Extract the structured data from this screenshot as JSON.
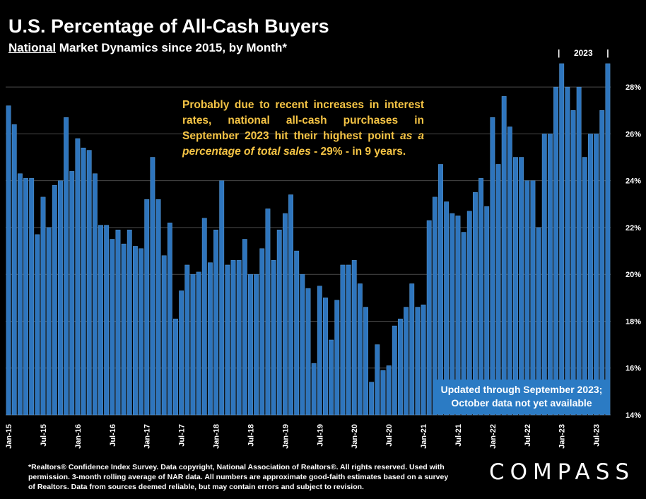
{
  "header": {
    "title": "U.S. Percentage of All-Cash Buyers",
    "subtitle_underlined": "National",
    "subtitle_rest": " Market Dynamics since 2015, by Month*"
  },
  "annotation": {
    "text_plain": "Probably due to recent increases in interest rates, national all-cash purchases in September 2023 hit their highest point ",
    "text_italic": "as a percentage of total sales",
    "text_end": " - 29% - in 9 years."
  },
  "note_box": {
    "line1": "Updated through September 2023;",
    "line2": "October data not yet available"
  },
  "footnote": "*Realtors® Confidence Index Survey. Data copyright, National Association of Realtors®. All rights reserved. Used with permission. 3-month rolling average of NAR data. All numbers are approximate good-faith estimates based on a survey of Realtors. Data from sources deemed reliable, but may contain errors and subject to revision.",
  "logo": "COMPASS",
  "year_bracket": {
    "label": "2023",
    "divider": "|"
  },
  "colors": {
    "bar": "#2e75bd",
    "bar_edge": "#5b9bd5",
    "grid": "#4a4a4a",
    "annotation": "#f5c445",
    "note_box": "#2b7bc4"
  },
  "chart_data": {
    "type": "bar",
    "title": "U.S. Percentage of All-Cash Buyers",
    "ylim": [
      14,
      29
    ],
    "yticks": [
      "14%",
      "16%",
      "18%",
      "20%",
      "22%",
      "24%",
      "26%",
      "28%"
    ],
    "ytick_values": [
      14,
      16,
      18,
      20,
      22,
      24,
      26,
      28
    ],
    "grid": true,
    "x_tick_labels": [
      "Jan-15",
      "Jul-15",
      "Jan-16",
      "Jul-16",
      "Jan-17",
      "Jul-17",
      "Jan-18",
      "Jul-18",
      "Jan-19",
      "Jul-19",
      "Jan-20",
      "Jul-20",
      "Jan-21",
      "Jul-21",
      "Jan-22",
      "Jul-22",
      "Jan-23",
      "Jul-23"
    ],
    "x_tick_every": 6,
    "start_month": "Jan-15",
    "end_month": "Sep-23",
    "values": [
      27.2,
      26.4,
      24.3,
      24.1,
      24.1,
      21.7,
      23.3,
      22.0,
      23.8,
      24.0,
      26.7,
      24.4,
      25.8,
      25.4,
      25.3,
      24.3,
      22.1,
      22.1,
      21.5,
      21.9,
      21.3,
      21.9,
      21.2,
      21.1,
      23.2,
      25.0,
      23.2,
      20.8,
      22.2,
      18.1,
      19.3,
      20.4,
      20.0,
      20.1,
      22.4,
      20.5,
      21.9,
      24.0,
      20.4,
      20.6,
      20.6,
      21.5,
      20.0,
      20.0,
      21.1,
      22.8,
      20.6,
      21.9,
      22.6,
      23.4,
      21.0,
      20.0,
      19.4,
      16.2,
      19.5,
      19.0,
      17.2,
      18.9,
      20.4,
      20.4,
      20.6,
      19.6,
      18.6,
      15.4,
      17.0,
      15.9,
      16.1,
      17.8,
      18.1,
      18.6,
      19.6,
      18.6,
      18.7,
      22.3,
      23.3,
      24.7,
      23.1,
      22.6,
      22.5,
      21.8,
      22.7,
      23.5,
      24.1,
      22.9,
      26.7,
      24.7,
      27.6,
      26.3,
      25.0,
      25.0,
      24.0,
      24.0,
      22.0,
      26.0,
      26.0,
      28.0,
      29.0,
      28.0,
      27.0,
      28.0,
      25.0,
      26.0,
      26.0,
      27.0,
      29.0
    ]
  }
}
